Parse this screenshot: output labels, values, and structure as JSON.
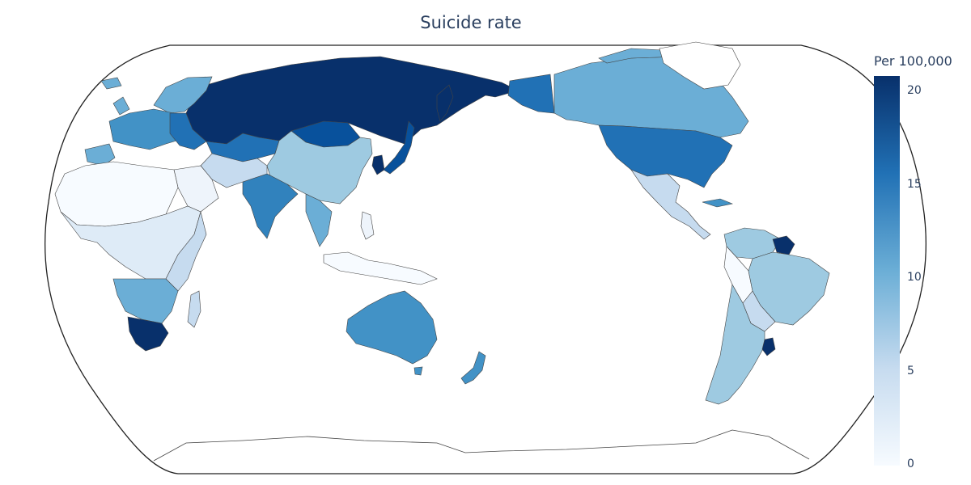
{
  "title": "Suicide rate",
  "legend": {
    "title": "Per 100,000",
    "range": [
      0,
      21
    ],
    "ticks": [
      "0",
      "5",
      "10",
      "15",
      "20"
    ],
    "colorscale": [
      "#f7fbff",
      "#c6dbef",
      "#6baed6",
      "#2171b5",
      "#08306b"
    ]
  },
  "map": {
    "projection": "robinson",
    "center_longitude": 150,
    "colors": {
      "ocean": "#ffffff",
      "border": "#444444",
      "frame": "#222222"
    }
  }
}
